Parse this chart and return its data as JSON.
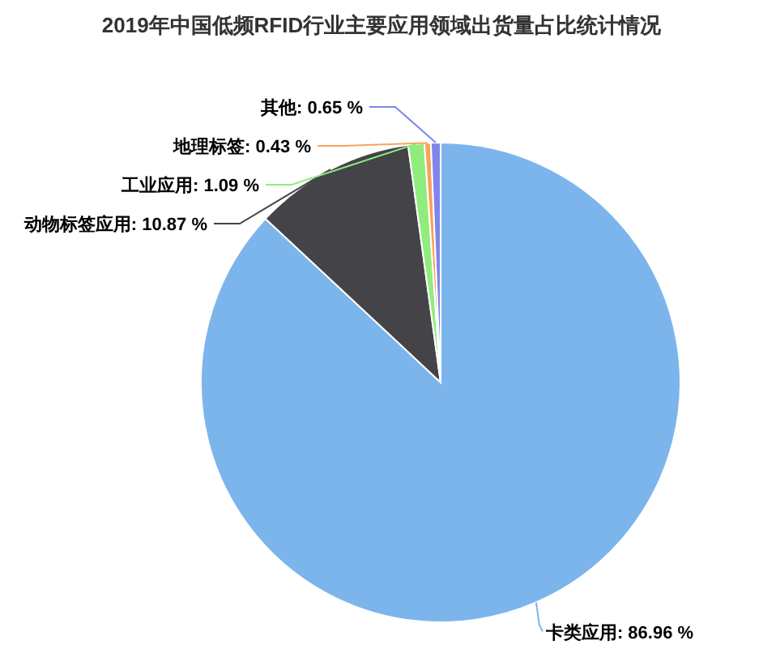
{
  "chart_data": {
    "type": "pie",
    "title": "2019年中国低频RFID行业主要应用领域出货量占比统计情况",
    "categories": [
      "卡类应用",
      "动物标签应用",
      "工业应用",
      "地理标签",
      "其他"
    ],
    "values": [
      86.96,
      10.87,
      1.09,
      0.43,
      0.65
    ],
    "colors": [
      "#7cb5ec",
      "#434348",
      "#90ed7d",
      "#f7a35c",
      "#8085e9"
    ],
    "value_labels": [
      "86.96 %",
      "10.87 %",
      "1.09 %",
      "0.43 %",
      "0.65 %"
    ]
  }
}
